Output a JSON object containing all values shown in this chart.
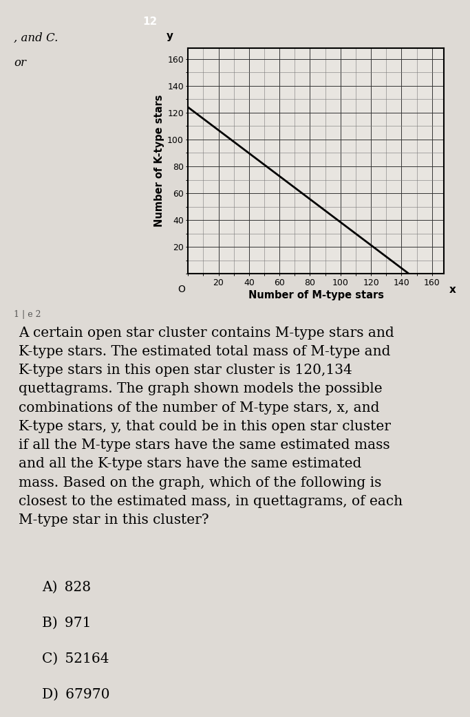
{
  "line_x": [
    0,
    145
  ],
  "line_y": [
    124,
    0
  ],
  "xlim": [
    0,
    168
  ],
  "ylim": [
    0,
    168
  ],
  "xticks": [
    0,
    20,
    40,
    60,
    80,
    100,
    120,
    140,
    160
  ],
  "yticks": [
    0,
    20,
    40,
    60,
    80,
    100,
    120,
    140,
    160
  ],
  "xlabel": "Number of M-type stars",
  "ylabel": "Number of K-type stars",
  "line_color": "#000000",
  "line_width": 2.0,
  "graph_bg": "#e8e5e0",
  "page_bg": "#dedad5",
  "left_panel_bg": "#d0ccc7",
  "header_bar_color": "#888880",
  "header_num_bg": "#222222",
  "header_text": "12",
  "left_text1": ", and C.",
  "left_text2": "or",
  "bottom_left": "1 | e 2",
  "question_text": "A certain open star cluster contains M-type stars and\nK-type stars. The estimated total mass of M-type and\nK-type stars in this open star cluster is 120,134\nquettagrams. The graph shown models the possible\ncombinations of the number of M-type stars, x, and\nK-type stars, y, that could be in this open star cluster\nif all the M-type stars have the same estimated mass\nand all the K-type stars have the same estimated\nmass. Based on the graph, which of the following is\nclosest to the estimated mass, in quettagrams, of each\nM-type star in this cluster?",
  "choices": [
    "A) 828",
    "B) 971",
    "C) 52164",
    "D) 67970"
  ],
  "font_size_question": 14.5,
  "font_size_choices": 14.5,
  "font_size_tick": 9,
  "font_size_axis": 10.5,
  "fig_width": 6.83,
  "fig_height": 10.43
}
